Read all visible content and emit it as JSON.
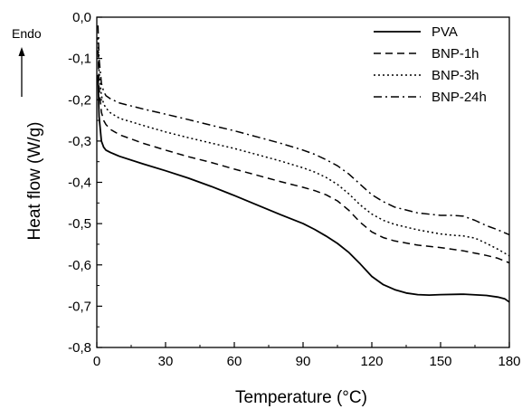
{
  "chart_data": {
    "type": "line",
    "xlabel": "Temperature (°C)",
    "ylabel": "Heat flow (W/g)",
    "annotation": "Endo",
    "xlim": [
      0,
      180
    ],
    "ylim": [
      -0.8,
      0.0
    ],
    "x_ticks": [
      0,
      30,
      60,
      90,
      120,
      150,
      180
    ],
    "x_tick_labels": [
      "0",
      "30",
      "60",
      "90",
      "120",
      "150",
      "180"
    ],
    "y_ticks": [
      0.0,
      -0.1,
      -0.2,
      -0.3,
      -0.4,
      -0.5,
      -0.6,
      -0.7,
      -0.8
    ],
    "y_tick_labels": [
      "0,0",
      "-0,1",
      "-0,2",
      "-0,3",
      "-0,4",
      "-0,5",
      "-0,6",
      "-0,7",
      "-0,8"
    ],
    "grid": false,
    "legend_position": "top-right",
    "series": [
      {
        "name": "PVA",
        "line_style": "solid",
        "color": "#000000",
        "x": [
          0.5,
          1,
          2,
          3,
          4,
          6,
          10,
          20,
          30,
          40,
          50,
          60,
          70,
          80,
          90,
          95,
          100,
          105,
          110,
          115,
          120,
          125,
          130,
          135,
          140,
          145,
          150,
          160,
          170,
          175,
          178,
          180
        ],
        "y": [
          -0.14,
          -0.24,
          -0.3,
          -0.315,
          -0.322,
          -0.328,
          -0.337,
          -0.355,
          -0.372,
          -0.39,
          -0.41,
          -0.432,
          -0.455,
          -0.478,
          -0.5,
          -0.514,
          -0.53,
          -0.548,
          -0.57,
          -0.598,
          -0.628,
          -0.648,
          -0.66,
          -0.668,
          -0.672,
          -0.673,
          -0.672,
          -0.671,
          -0.674,
          -0.678,
          -0.682,
          -0.69
        ]
      },
      {
        "name": "BNP-1h",
        "line_style": "dashed",
        "color": "#000000",
        "x": [
          0.5,
          1,
          2,
          3,
          4,
          6,
          10,
          20,
          30,
          40,
          50,
          60,
          70,
          80,
          90,
          95,
          100,
          105,
          110,
          115,
          120,
          125,
          130,
          140,
          150,
          160,
          170,
          175,
          180
        ],
        "y": [
          -0.08,
          -0.17,
          -0.23,
          -0.25,
          -0.26,
          -0.272,
          -0.285,
          -0.305,
          -0.322,
          -0.338,
          -0.352,
          -0.368,
          -0.383,
          -0.398,
          -0.412,
          -0.42,
          -0.43,
          -0.445,
          -0.468,
          -0.497,
          -0.52,
          -0.534,
          -0.542,
          -0.552,
          -0.558,
          -0.566,
          -0.577,
          -0.584,
          -0.595
        ]
      },
      {
        "name": "BNP-3h",
        "line_style": "dotted",
        "color": "#000000",
        "x": [
          0.5,
          1,
          2,
          3,
          4,
          6,
          10,
          20,
          30,
          40,
          50,
          60,
          70,
          80,
          90,
          95,
          100,
          105,
          110,
          115,
          120,
          125,
          130,
          140,
          150,
          155,
          160,
          165,
          170,
          175,
          180
        ],
        "y": [
          -0.05,
          -0.13,
          -0.19,
          -0.21,
          -0.22,
          -0.232,
          -0.245,
          -0.262,
          -0.278,
          -0.292,
          -0.305,
          -0.318,
          -0.333,
          -0.348,
          -0.365,
          -0.375,
          -0.388,
          -0.405,
          -0.428,
          -0.455,
          -0.477,
          -0.492,
          -0.502,
          -0.515,
          -0.525,
          -0.528,
          -0.53,
          -0.535,
          -0.548,
          -0.562,
          -0.578
        ]
      },
      {
        "name": "BNP-24h",
        "line_style": "dashdot",
        "color": "#000000",
        "x": [
          0.5,
          1,
          2,
          3,
          4,
          6,
          10,
          20,
          30,
          40,
          50,
          60,
          70,
          80,
          90,
          95,
          100,
          105,
          110,
          115,
          120,
          125,
          130,
          140,
          150,
          155,
          160,
          165,
          170,
          175,
          180
        ],
        "y": [
          -0.02,
          -0.1,
          -0.16,
          -0.18,
          -0.19,
          -0.198,
          -0.208,
          -0.222,
          -0.235,
          -0.248,
          -0.262,
          -0.275,
          -0.29,
          -0.305,
          -0.322,
          -0.332,
          -0.345,
          -0.36,
          -0.38,
          -0.405,
          -0.43,
          -0.447,
          -0.46,
          -0.474,
          -0.48,
          -0.48,
          -0.482,
          -0.492,
          -0.505,
          -0.515,
          -0.527
        ]
      }
    ]
  }
}
